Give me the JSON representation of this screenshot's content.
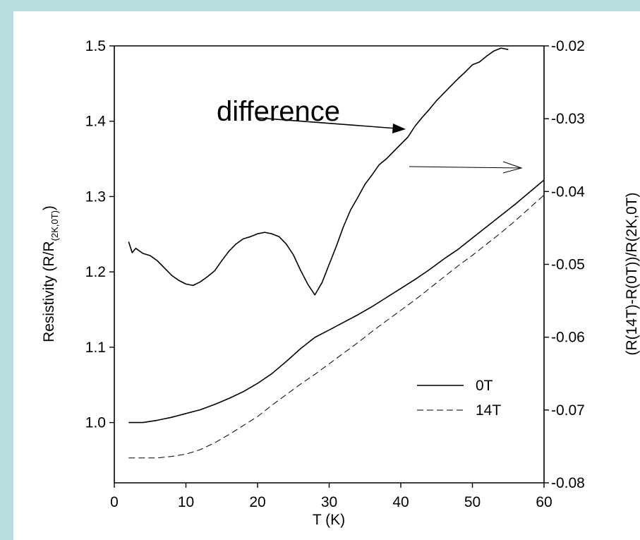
{
  "chart_data": {
    "type": "line",
    "xlabel": "T (K)",
    "ylabel": "Resistivity (R/R",
    "ylabel_subscript": "(2K,0T)",
    "ylabel_close": ")",
    "y2label": "(R(14T)-R(0T))/R(2K,0T)",
    "xlim": [
      0,
      60
    ],
    "ylim": [
      0.92,
      1.5
    ],
    "y2lim": [
      -0.08,
      -0.02
    ],
    "x_ticks": [
      "0",
      "10",
      "20",
      "30",
      "40",
      "50",
      "60"
    ],
    "y_ticks": [
      "1.0",
      "1.1",
      "1.2",
      "1.3",
      "1.4",
      "1.5"
    ],
    "y2_ticks": [
      "-0.08",
      "-0.07",
      "-0.06",
      "-0.05",
      "-0.04",
      "-0.03",
      "-0.02"
    ],
    "grid": false,
    "legend_position": "lower-right",
    "annotation": "difference",
    "series": [
      {
        "name": "0T",
        "axis": "left",
        "style": "solid",
        "points": [
          [
            2,
            1.0
          ],
          [
            4,
            1.0
          ],
          [
            6,
            1.003
          ],
          [
            8,
            1.007
          ],
          [
            10,
            1.012
          ],
          [
            12,
            1.017
          ],
          [
            14,
            1.024
          ],
          [
            16,
            1.032
          ],
          [
            18,
            1.041
          ],
          [
            20,
            1.052
          ],
          [
            22,
            1.065
          ],
          [
            24,
            1.081
          ],
          [
            26,
            1.098
          ],
          [
            28,
            1.113
          ],
          [
            30,
            1.123
          ],
          [
            32,
            1.133
          ],
          [
            34,
            1.143
          ],
          [
            36,
            1.154
          ],
          [
            38,
            1.166
          ],
          [
            40,
            1.178
          ],
          [
            42,
            1.19
          ],
          [
            44,
            1.203
          ],
          [
            46,
            1.217
          ],
          [
            48,
            1.23
          ],
          [
            50,
            1.245
          ],
          [
            52,
            1.26
          ],
          [
            54,
            1.275
          ],
          [
            56,
            1.29
          ],
          [
            58,
            1.306
          ],
          [
            60,
            1.322
          ]
        ]
      },
      {
        "name": "14T",
        "axis": "left",
        "style": "dashed",
        "points": [
          [
            2,
            0.953
          ],
          [
            4,
            0.953
          ],
          [
            6,
            0.953
          ],
          [
            8,
            0.955
          ],
          [
            10,
            0.958
          ],
          [
            12,
            0.964
          ],
          [
            14,
            0.973
          ],
          [
            16,
            0.984
          ],
          [
            18,
            0.996
          ],
          [
            20,
            1.008
          ],
          [
            22,
            1.023
          ],
          [
            24,
            1.037
          ],
          [
            26,
            1.051
          ],
          [
            28,
            1.064
          ],
          [
            30,
            1.078
          ],
          [
            32,
            1.092
          ],
          [
            34,
            1.106
          ],
          [
            36,
            1.121
          ],
          [
            38,
            1.135
          ],
          [
            40,
            1.149
          ],
          [
            42,
            1.163
          ],
          [
            44,
            1.178
          ],
          [
            46,
            1.193
          ],
          [
            48,
            1.208
          ],
          [
            50,
            1.222
          ],
          [
            52,
            1.237
          ],
          [
            54,
            1.252
          ],
          [
            56,
            1.268
          ],
          [
            58,
            1.285
          ],
          [
            60,
            1.302
          ]
        ]
      },
      {
        "name": "difference",
        "axis": "right",
        "style": "solid",
        "points": [
          [
            2,
            -0.0469
          ],
          [
            2.5,
            -0.0484
          ],
          [
            3,
            -0.0478
          ],
          [
            4,
            -0.0485
          ],
          [
            5,
            -0.0488
          ],
          [
            6,
            -0.0495
          ],
          [
            7,
            -0.0505
          ],
          [
            8,
            -0.0515
          ],
          [
            9,
            -0.0522
          ],
          [
            10,
            -0.0527
          ],
          [
            11,
            -0.0529
          ],
          [
            12,
            -0.0524
          ],
          [
            13,
            -0.0517
          ],
          [
            14,
            -0.0509
          ],
          [
            15,
            -0.0495
          ],
          [
            16,
            -0.0482
          ],
          [
            17,
            -0.0472
          ],
          [
            18,
            -0.0465
          ],
          [
            19,
            -0.0462
          ],
          [
            20,
            -0.0458
          ],
          [
            21,
            -0.0456
          ],
          [
            22,
            -0.0458
          ],
          [
            23,
            -0.0462
          ],
          [
            24,
            -0.0472
          ],
          [
            25,
            -0.0487
          ],
          [
            26,
            -0.0508
          ],
          [
            27,
            -0.0527
          ],
          [
            28,
            -0.0542
          ],
          [
            29,
            -0.0525
          ],
          [
            30,
            -0.05
          ],
          [
            31,
            -0.0475
          ],
          [
            32,
            -0.0448
          ],
          [
            33,
            -0.0425
          ],
          [
            34,
            -0.0408
          ],
          [
            35,
            -0.039
          ],
          [
            36,
            -0.0377
          ],
          [
            37,
            -0.0363
          ],
          [
            38,
            -0.0355
          ],
          [
            39,
            -0.0345
          ],
          [
            40,
            -0.0335
          ],
          [
            41,
            -0.0325
          ],
          [
            42,
            -0.031
          ],
          [
            43,
            -0.0298
          ],
          [
            44,
            -0.0287
          ],
          [
            45,
            -0.0275
          ],
          [
            46,
            -0.0265
          ],
          [
            47,
            -0.0255
          ],
          [
            48,
            -0.0245
          ],
          [
            49,
            -0.0236
          ],
          [
            50,
            -0.0226
          ],
          [
            51,
            -0.0222
          ],
          [
            52,
            -0.0214
          ],
          [
            53,
            -0.0207
          ],
          [
            54,
            -0.0203
          ],
          [
            55,
            -0.0205
          ]
        ]
      }
    ]
  },
  "colors": {
    "frame": "#b7dde1",
    "panel": "#ffffff",
    "ink": "#000000"
  }
}
